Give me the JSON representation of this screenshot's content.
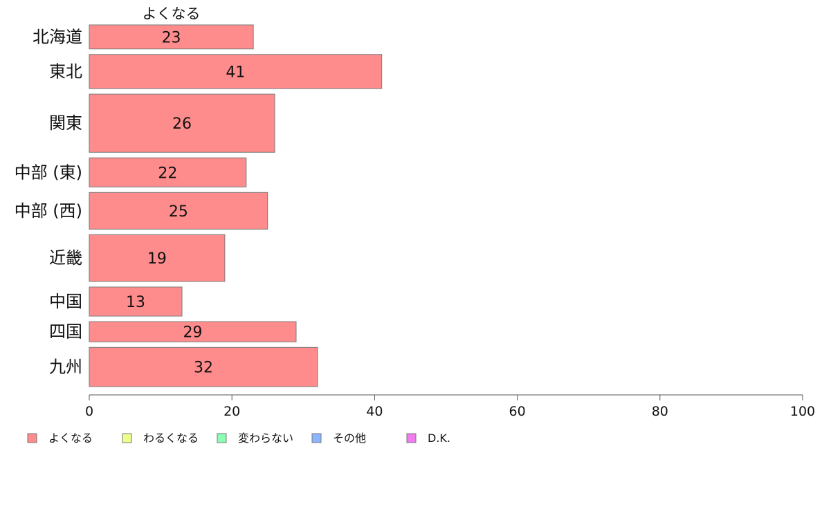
{
  "chart_data": {
    "type": "bar",
    "orientation": "horizontal",
    "categories": [
      "北海道",
      "東北",
      "関東",
      "中部 (東)",
      "中部 (西)",
      "近畿",
      "中国",
      "四国",
      "九州"
    ],
    "bar_weights": [
      0.95,
      1.35,
      2.3,
      1.15,
      1.45,
      1.85,
      1.15,
      0.8,
      1.55
    ],
    "series": [
      {
        "name": "よくなる",
        "values": [
          23,
          41,
          26,
          22,
          25,
          19,
          13,
          29,
          32
        ],
        "color": "#ff8c8c"
      }
    ],
    "xlim": [
      0,
      100
    ],
    "xticks": [
      0,
      20,
      40,
      60,
      80,
      100
    ],
    "grid": false,
    "legend_position": "bottom",
    "legend": [
      {
        "label": "よくなる",
        "color": "#ff8c8c"
      },
      {
        "label": "わるくなる",
        "color": "#eeff8c"
      },
      {
        "label": "変わらない",
        "color": "#8cffb4"
      },
      {
        "label": "その他",
        "color": "#8cb4ff"
      },
      {
        "label": "D.K.",
        "color": "#f07cf0"
      }
    ]
  }
}
